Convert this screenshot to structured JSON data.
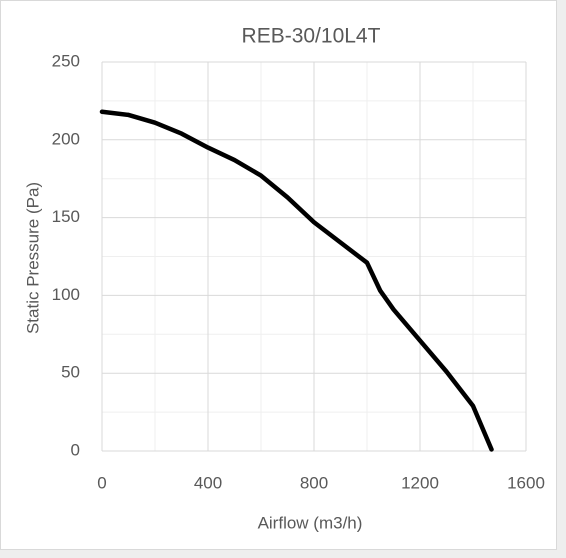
{
  "chart_data": {
    "type": "line",
    "title": "REB-30/10L4T",
    "x_label": "Airflow (m3/h)",
    "y_label": "Static Pressure (Pa)",
    "series": [
      {
        "name": "REB-30/10L4T",
        "color": "#000000",
        "x": [
          0,
          100,
          200,
          300,
          400,
          500,
          600,
          700,
          800,
          900,
          1000,
          1050,
          1100,
          1200,
          1300,
          1400,
          1470
        ],
        "values": [
          218,
          216,
          211,
          204,
          195,
          187,
          177,
          163,
          147,
          134,
          121,
          103,
          91,
          71,
          51,
          29,
          1
        ]
      }
    ],
    "xlim": [
      0,
      1600
    ],
    "xticks": [
      0,
      400,
      800,
      1200,
      1600
    ],
    "ylim": [
      0,
      250
    ],
    "yticks": [
      0,
      50,
      100,
      150,
      200,
      250
    ],
    "x_minor_ticks": [
      200,
      600,
      1000,
      1400
    ],
    "y_minor_ticks": [
      25,
      75,
      125,
      175,
      225
    ],
    "grid": true
  }
}
